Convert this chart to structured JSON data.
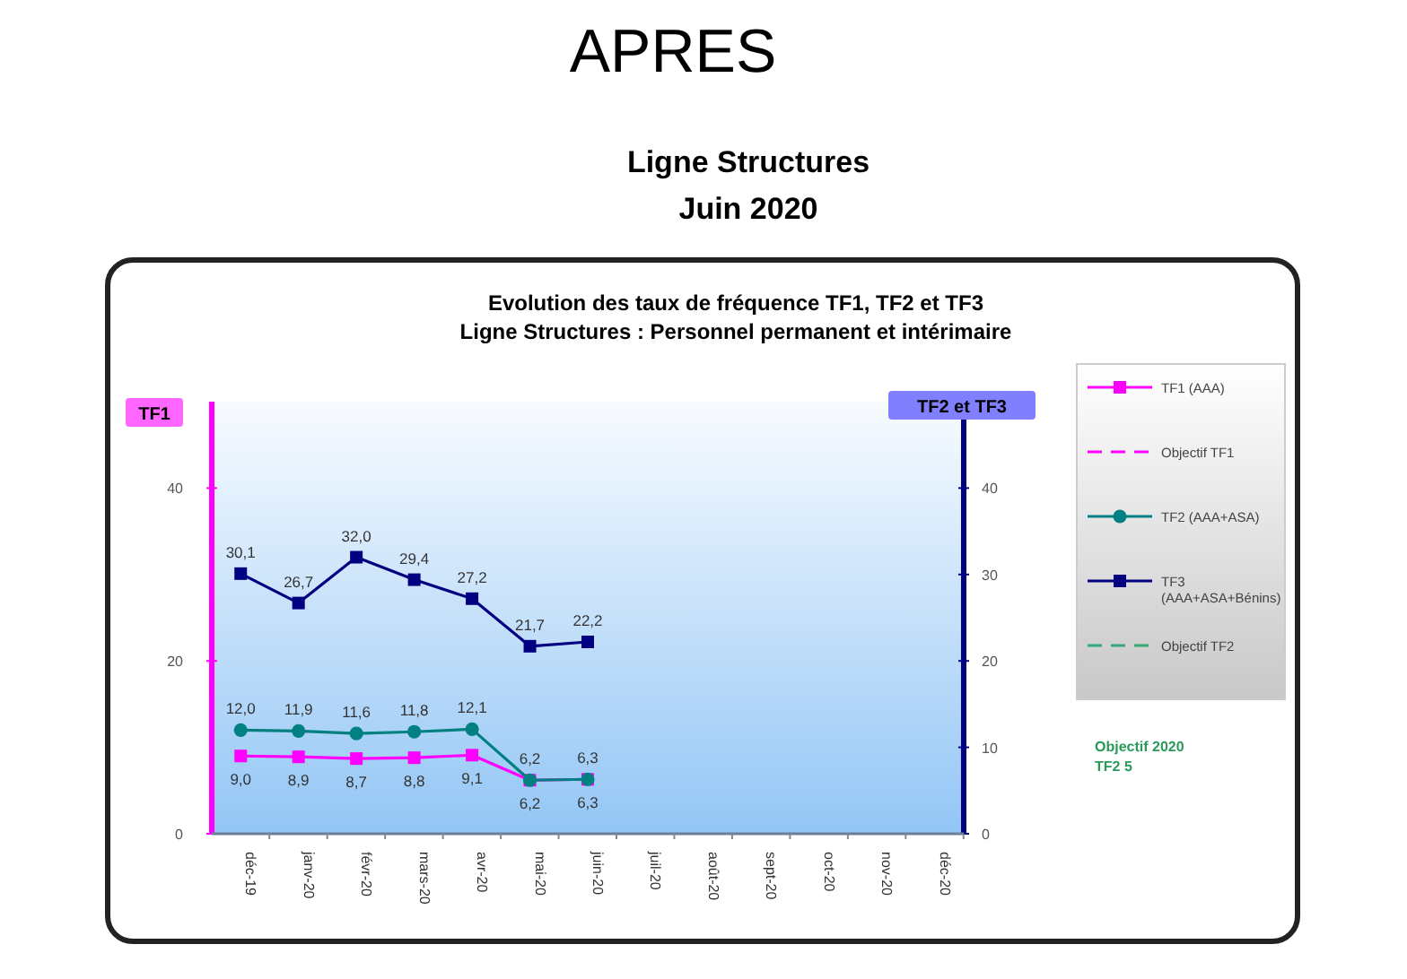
{
  "chart_data": {
    "type": "line",
    "title": "Evolution  des taux de fréquence TF1, TF2 et TF3",
    "subtitle": "Ligne Structures : Personnel permanent et intérimaire",
    "ylabel": "TF1",
    "y2label": "TF2 et TF3",
    "annotations": [
      "APRES",
      "Ligne Structures",
      "Juin 2020",
      "Objectif 2020",
      "TF2 5"
    ],
    "categories": [
      "déc-19",
      "janv-20",
      "févr-20",
      "mars-20",
      "avr-20",
      "mai-20",
      "juin-20",
      "juil-20",
      "août-20",
      "sept-20",
      "oct-20",
      "nov-20",
      "déc-20"
    ],
    "ylim": [
      0,
      50
    ],
    "yticks": [
      0,
      20,
      40
    ],
    "y2lim": [
      0,
      50
    ],
    "y2ticks": [
      0,
      10,
      20,
      30,
      40
    ],
    "grid": false,
    "legend": "right",
    "line_style": "solid",
    "series": [
      {
        "name": "TF1 (AAA)",
        "color": "#ff00ff",
        "marker": "square",
        "values": [
          9.0,
          8.9,
          8.7,
          8.8,
          9.1,
          6.2,
          6.3,
          null,
          null,
          null,
          null,
          null,
          null
        ],
        "value_labels": [
          "9,0",
          "8,9",
          "8,7",
          "8,8",
          "9,1",
          "6,2",
          "6,3",
          null,
          null,
          null,
          null,
          null,
          null
        ]
      },
      {
        "name": "Objectif TF1",
        "color": "#ff00ff",
        "marker": "none",
        "line_style": "dashed",
        "values": [
          null,
          null,
          null,
          null,
          null,
          null,
          null,
          null,
          null,
          null,
          null,
          null,
          null
        ]
      },
      {
        "name": "TF2 (AAA+ASA)",
        "color": "#008080",
        "marker": "circle",
        "axis": "y2",
        "values": [
          12.0,
          11.9,
          11.6,
          11.8,
          12.1,
          6.2,
          6.3,
          null,
          null,
          null,
          null,
          null,
          null
        ],
        "value_labels": [
          "12,0",
          "11,9",
          "11,6",
          "11,8",
          "12,1",
          "6,2",
          "6,3",
          null,
          null,
          null,
          null,
          null,
          null
        ]
      },
      {
        "name": "TF3 (AAA+ASA+Bénins)",
        "color": "#000080",
        "marker": "square",
        "axis": "y2",
        "values": [
          30.1,
          26.7,
          32.0,
          29.4,
          27.2,
          21.7,
          22.2,
          null,
          null,
          null,
          null,
          null,
          null
        ],
        "value_labels": [
          "30,1",
          "26,7",
          "32,0",
          "29,4",
          "27,2",
          "21,7",
          "22,2",
          null,
          null,
          null,
          null,
          null,
          null
        ]
      },
      {
        "name": "Objectif TF2",
        "color": "#33aa77",
        "marker": "none",
        "line_style": "dashed",
        "axis": "y2",
        "values": [
          null,
          null,
          null,
          null,
          null,
          null,
          null,
          null,
          null,
          null,
          null,
          null,
          null
        ]
      }
    ]
  }
}
